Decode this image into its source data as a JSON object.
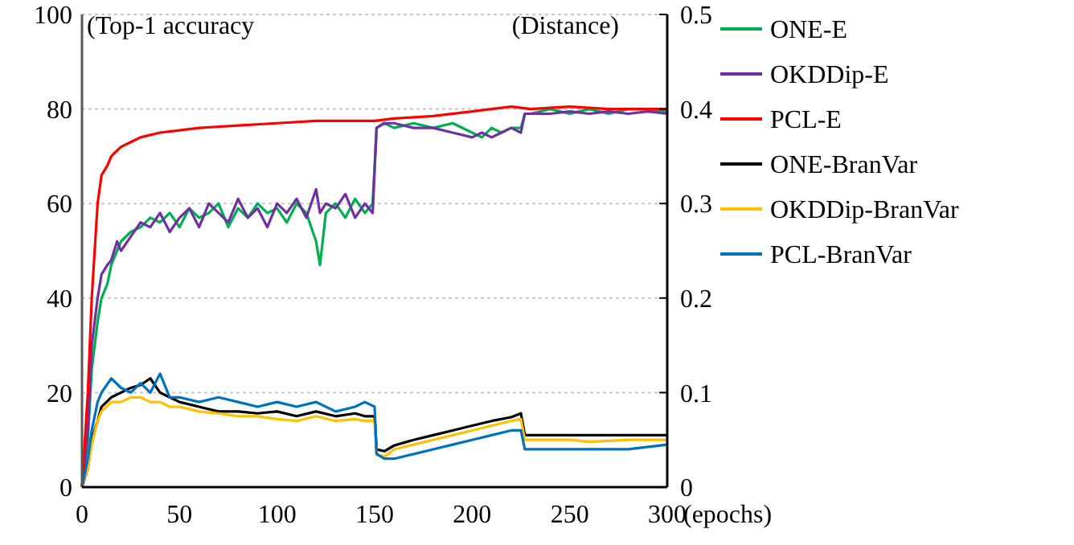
{
  "chart_data": {
    "type": "line",
    "ylabel": "(Top-1 accuracy",
    "y2label": "(Distance)",
    "xlabel": "(epochs)",
    "xlim": [
      0,
      300
    ],
    "xticks": [
      0,
      50,
      100,
      150,
      200,
      250,
      300
    ],
    "ylim": [
      0,
      100
    ],
    "yticks": [
      0,
      20,
      40,
      60,
      80,
      100
    ],
    "y2lim": [
      0,
      0.5
    ],
    "y2ticks": [
      0,
      0.1,
      0.2,
      0.3,
      0.4,
      0.5
    ],
    "grid": "y",
    "legend": "right",
    "marker": "none",
    "line_style": "solid",
    "series": [
      {
        "name": "ONE-E",
        "color": "#00b050",
        "x": [
          0,
          3,
          5,
          8,
          10,
          13,
          15,
          18,
          20,
          25,
          30,
          35,
          40,
          45,
          50,
          55,
          60,
          65,
          70,
          75,
          80,
          85,
          90,
          95,
          100,
          105,
          110,
          115,
          120,
          122,
          125,
          130,
          135,
          140,
          145,
          149,
          151,
          155,
          160,
          170,
          180,
          190,
          200,
          205,
          210,
          215,
          220,
          225,
          227,
          230,
          240,
          250,
          260,
          270,
          280,
          290,
          300
        ],
        "values": [
          0,
          10,
          25,
          35,
          40,
          43,
          47,
          50,
          52,
          54,
          55,
          57,
          56,
          58,
          55,
          59,
          57,
          58,
          60,
          55,
          59,
          57,
          60,
          58,
          59,
          56,
          60,
          58,
          52,
          47,
          58,
          60,
          57,
          61,
          58,
          60,
          76,
          77,
          76,
          77,
          76,
          77,
          75,
          74,
          76,
          75,
          76,
          76,
          79,
          79,
          80,
          79,
          80,
          79,
          80,
          80,
          79.5
        ]
      },
      {
        "name": "OKDDip-E",
        "color": "#7030a0",
        "x": [
          0,
          3,
          5,
          8,
          10,
          13,
          15,
          18,
          20,
          25,
          30,
          35,
          40,
          45,
          50,
          55,
          60,
          65,
          70,
          75,
          80,
          85,
          90,
          95,
          100,
          105,
          110,
          115,
          120,
          122,
          125,
          130,
          135,
          140,
          145,
          149,
          151,
          155,
          160,
          170,
          180,
          190,
          200,
          205,
          210,
          215,
          220,
          225,
          227,
          230,
          240,
          250,
          260,
          270,
          280,
          290,
          300
        ],
        "values": [
          0,
          12,
          30,
          40,
          45,
          47,
          48,
          52,
          50,
          53,
          56,
          55,
          58,
          54,
          57,
          59,
          55,
          60,
          58,
          56,
          61,
          57,
          59,
          55,
          60,
          58,
          61,
          57,
          63,
          58,
          60,
          59,
          62,
          57,
          60,
          58,
          76,
          77,
          77,
          76,
          76,
          75,
          74,
          75,
          74,
          75,
          76,
          75,
          79,
          79,
          79,
          79.5,
          79,
          79.5,
          79,
          79.5,
          79
        ]
      },
      {
        "name": "PCL-E",
        "color": "#ff0000",
        "x": [
          0,
          3,
          5,
          8,
          10,
          13,
          15,
          20,
          25,
          30,
          40,
          50,
          60,
          80,
          100,
          120,
          150,
          160,
          180,
          200,
          210,
          220,
          230,
          250,
          270,
          300
        ],
        "values": [
          0,
          20,
          40,
          60,
          66,
          68,
          70,
          72,
          73,
          74,
          75,
          75.5,
          76,
          76.5,
          77,
          77.5,
          77.5,
          78,
          78.5,
          79.5,
          80,
          80.5,
          80,
          80.5,
          80,
          80
        ]
      },
      {
        "name": "ONE-BranVar",
        "color": "#000000",
        "axis": "y2",
        "x": [
          0,
          3,
          5,
          8,
          10,
          15,
          20,
          25,
          30,
          35,
          40,
          45,
          50,
          60,
          70,
          80,
          90,
          100,
          110,
          120,
          130,
          140,
          145,
          150,
          151,
          155,
          160,
          170,
          180,
          190,
          200,
          210,
          220,
          225,
          227,
          240,
          250,
          260,
          280,
          300
        ],
        "values": [
          0,
          0.02,
          0.05,
          0.07,
          0.085,
          0.095,
          0.1,
          0.105,
          0.108,
          0.115,
          0.1,
          0.095,
          0.09,
          0.085,
          0.08,
          0.08,
          0.078,
          0.08,
          0.075,
          0.08,
          0.075,
          0.078,
          0.075,
          0.075,
          0.04,
          0.038,
          0.044,
          0.05,
          0.055,
          0.06,
          0.065,
          0.07,
          0.074,
          0.078,
          0.055,
          0.055,
          0.055,
          0.055,
          0.055,
          0.055
        ]
      },
      {
        "name": "OKDDip-BranVar",
        "color": "#ffc000",
        "axis": "y2",
        "x": [
          0,
          3,
          5,
          8,
          10,
          15,
          20,
          25,
          30,
          35,
          40,
          45,
          50,
          60,
          70,
          80,
          90,
          100,
          110,
          120,
          130,
          140,
          145,
          150,
          151,
          155,
          160,
          170,
          180,
          190,
          200,
          210,
          220,
          225,
          227,
          240,
          250,
          260,
          280,
          300
        ],
        "values": [
          0,
          0.02,
          0.045,
          0.07,
          0.08,
          0.09,
          0.09,
          0.095,
          0.095,
          0.09,
          0.09,
          0.085,
          0.085,
          0.08,
          0.078,
          0.075,
          0.075,
          0.072,
          0.07,
          0.075,
          0.07,
          0.072,
          0.07,
          0.07,
          0.035,
          0.032,
          0.04,
          0.045,
          0.05,
          0.055,
          0.06,
          0.065,
          0.07,
          0.072,
          0.05,
          0.05,
          0.05,
          0.048,
          0.05,
          0.05
        ]
      },
      {
        "name": "PCL-BranVar",
        "color": "#0070c0",
        "axis": "y2",
        "x": [
          0,
          3,
          5,
          8,
          10,
          15,
          20,
          25,
          30,
          35,
          40,
          45,
          50,
          60,
          70,
          80,
          90,
          100,
          110,
          120,
          130,
          140,
          145,
          150,
          151,
          155,
          160,
          170,
          180,
          190,
          200,
          210,
          220,
          225,
          227,
          240,
          250,
          260,
          280,
          300
        ],
        "values": [
          0,
          0.03,
          0.06,
          0.09,
          0.1,
          0.115,
          0.105,
          0.1,
          0.11,
          0.1,
          0.12,
          0.095,
          0.095,
          0.09,
          0.095,
          0.09,
          0.085,
          0.09,
          0.085,
          0.09,
          0.08,
          0.085,
          0.09,
          0.085,
          0.035,
          0.03,
          0.03,
          0.035,
          0.04,
          0.045,
          0.05,
          0.055,
          0.06,
          0.06,
          0.04,
          0.04,
          0.04,
          0.04,
          0.04,
          0.045
        ]
      }
    ]
  }
}
